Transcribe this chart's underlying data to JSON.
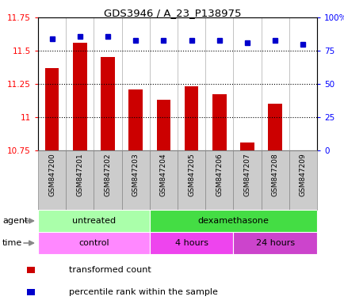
{
  "title": "GDS3946 / A_23_P138975",
  "samples": [
    "GSM847200",
    "GSM847201",
    "GSM847202",
    "GSM847203",
    "GSM847204",
    "GSM847205",
    "GSM847206",
    "GSM847207",
    "GSM847208",
    "GSM847209"
  ],
  "bar_values": [
    11.37,
    11.56,
    11.45,
    11.21,
    11.13,
    11.23,
    11.17,
    10.81,
    11.1,
    10.75
  ],
  "percentile_values": [
    84,
    86,
    86,
    83,
    83,
    83,
    83,
    81,
    83,
    80
  ],
  "bar_color": "#cc0000",
  "dot_color": "#0000cc",
  "ylim_left": [
    10.75,
    11.75
  ],
  "ylim_right": [
    0,
    100
  ],
  "yticks_left": [
    10.75,
    11.0,
    11.25,
    11.5,
    11.75
  ],
  "yticks_right": [
    0,
    25,
    50,
    75,
    100
  ],
  "ytick_labels_left": [
    "10.75",
    "11",
    "11.25",
    "11.5",
    "11.75"
  ],
  "ytick_labels_right": [
    "0",
    "25",
    "50",
    "75",
    "100%"
  ],
  "dotted_lines": [
    11.0,
    11.25,
    11.5
  ],
  "agent_groups": [
    {
      "label": "untreated",
      "start": 0,
      "end": 4,
      "color": "#aaffaa"
    },
    {
      "label": "dexamethasone",
      "start": 4,
      "end": 10,
      "color": "#44dd44"
    }
  ],
  "time_groups": [
    {
      "label": "control",
      "start": 0,
      "end": 4,
      "color": "#ff88ff"
    },
    {
      "label": "4 hours",
      "start": 4,
      "end": 7,
      "color": "#ee44ee"
    },
    {
      "label": "24 hours",
      "start": 7,
      "end": 10,
      "color": "#cc44cc"
    }
  ],
  "legend_bar_label": "transformed count",
  "legend_dot_label": "percentile rank within the sample",
  "agent_label": "agent",
  "time_label": "time",
  "xtick_bg_color": "#cccccc",
  "xtick_sep_color": "#888888"
}
